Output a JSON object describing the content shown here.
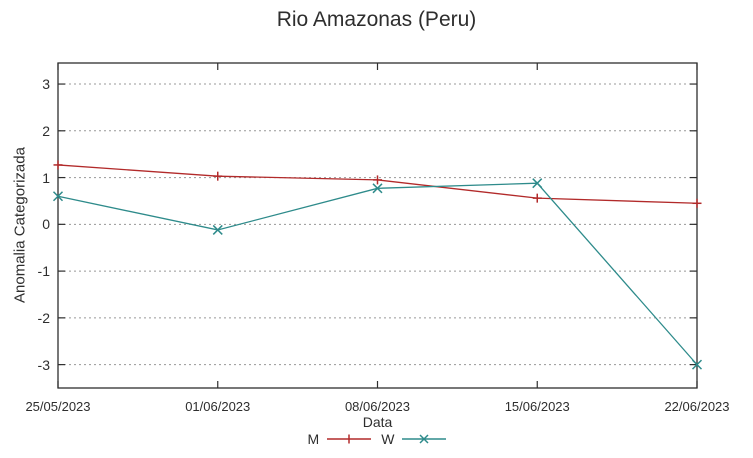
{
  "chart_data": {
    "type": "line",
    "title": "Rio Amazonas (Peru)",
    "xlabel": "Data",
    "ylabel": "Anomalia Categorizada",
    "categories": [
      "25/05/2023",
      "01/06/2023",
      "08/06/2023",
      "15/06/2023",
      "22/06/2023"
    ],
    "y_ticks": [
      3,
      2,
      1,
      0,
      -1,
      -2,
      -3
    ],
    "ylim": [
      -3.5,
      3.45
    ],
    "grid": true,
    "legend_position": "bottom-center",
    "axis_color": "#2e2e2e",
    "grid_color": "#989898",
    "background_color": "#ffffff",
    "series": [
      {
        "name": "M",
        "color": "#b22a2a",
        "marker": "plus",
        "values": [
          1.27,
          1.03,
          0.95,
          0.56,
          0.45
        ]
      },
      {
        "name": "W",
        "color": "#2e8b8b",
        "marker": "x",
        "values": [
          0.6,
          -0.12,
          0.77,
          0.88,
          -3.0
        ]
      }
    ]
  }
}
